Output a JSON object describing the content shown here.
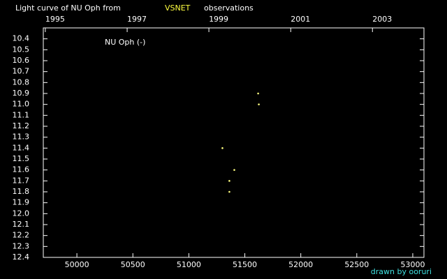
{
  "chart_data": {
    "type": "scatter",
    "title_parts": [
      "Light curve of NU Oph from",
      "VSNET",
      "observations"
    ],
    "legend_label": "NU Oph (-)",
    "credit": "drawn by ooruri",
    "series": [
      {
        "color": "#ffff80",
        "x": [
          51619,
          51625,
          51300,
          51406,
          51362,
          51362
        ],
        "values": [
          10.9,
          11.0,
          11.4,
          11.6,
          11.7,
          11.8
        ]
      }
    ],
    "xlim": [
      49700,
      53100
    ],
    "xticks": [
      50000,
      50500,
      51000,
      51500,
      52000,
      52500,
      53000
    ],
    "x2ticks": [
      {
        "value": 49718,
        "label": "1995"
      },
      {
        "value": 50449,
        "label": "1997"
      },
      {
        "value": 51179,
        "label": "1999"
      },
      {
        "value": 51910,
        "label": "2001"
      },
      {
        "value": 52640,
        "label": "2003"
      }
    ],
    "ylim": [
      12.4,
      10.3
    ],
    "yticks": [
      10.4,
      10.5,
      10.6,
      10.7,
      10.8,
      10.9,
      {
        "value": 11.0,
        "label": "11.0"
      },
      11.1,
      11.2,
      11.3,
      11.4,
      11.5,
      11.6,
      11.7,
      11.8,
      11.9,
      {
        "value": 12.0,
        "label": "12.0"
      },
      12.1,
      12.2,
      12.3,
      12.4
    ]
  }
}
